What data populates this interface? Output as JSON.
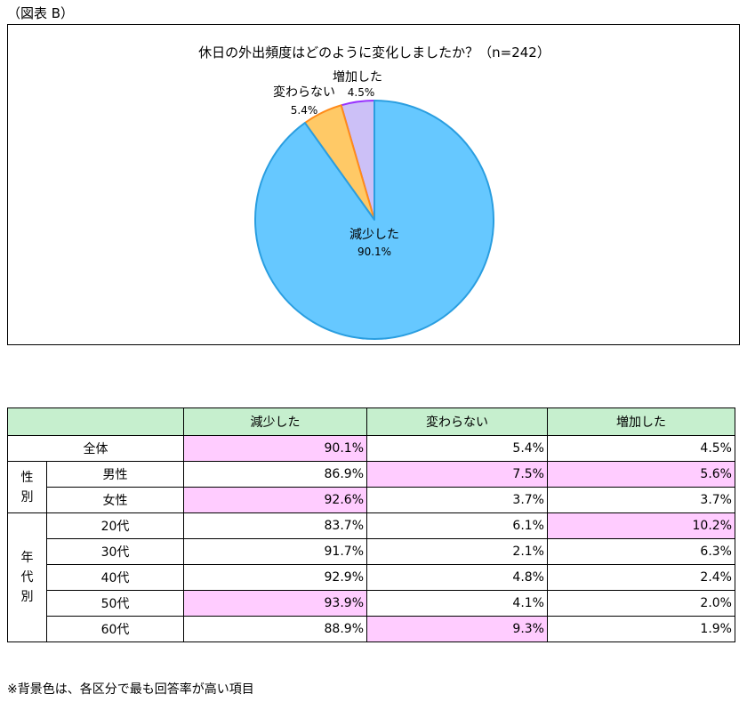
{
  "figure_label": "（図表 B）",
  "chart_data": {
    "type": "pie",
    "title": "休日の外出頻度はどのように変化しましたか？（n=242）",
    "slices": [
      {
        "label": "増加した",
        "value": 4.5,
        "value_label": "4.5%",
        "color": "#ccc0f7",
        "stroke": "#9933ff"
      },
      {
        "label": "変わらない",
        "value": 5.4,
        "value_label": "5.4%",
        "color": "#ffc966",
        "stroke": "#ff8c1a"
      },
      {
        "label": "減少した",
        "value": 90.1,
        "value_label": "90.1%",
        "color": "#66c8ff",
        "stroke": "#2a9ee0"
      }
    ],
    "start_angle_deg": 0,
    "direction": "counterclockwise"
  },
  "table": {
    "headers": [
      "減少した",
      "変わらない",
      "増加した"
    ],
    "header_color": "#c6efce",
    "highlight_color": "#ffccff",
    "rows": [
      {
        "group": "",
        "label": "全体",
        "values": [
          "90.1%",
          "5.4%",
          "4.5%"
        ],
        "highlight": 0
      },
      {
        "group": "性別",
        "label": "男性",
        "values": [
          "86.9%",
          "7.5%",
          "5.6%"
        ],
        "highlight": [
          1,
          2
        ]
      },
      {
        "group": "性別",
        "label": "女性",
        "values": [
          "92.6%",
          "3.7%",
          "3.7%"
        ],
        "highlight": 0
      },
      {
        "group": "年代別",
        "label": "20代",
        "values": [
          "83.7%",
          "6.1%",
          "10.2%"
        ],
        "highlight": 2
      },
      {
        "group": "年代別",
        "label": "30代",
        "values": [
          "91.7%",
          "2.1%",
          "6.3%"
        ],
        "highlight": -1
      },
      {
        "group": "年代別",
        "label": "40代",
        "values": [
          "92.9%",
          "4.8%",
          "2.4%"
        ],
        "highlight": -1
      },
      {
        "group": "年代別",
        "label": "50代",
        "values": [
          "93.9%",
          "4.1%",
          "2.0%"
        ],
        "highlight": 0
      },
      {
        "group": "年代別",
        "label": "60代",
        "values": [
          "88.9%",
          "9.3%",
          "1.9%"
        ],
        "highlight": 1
      }
    ],
    "groups": {
      "gender": "性\n別",
      "age": "年\n代\n別"
    }
  },
  "note": "※背景色は、各区分で最も回答率が高い項目"
}
